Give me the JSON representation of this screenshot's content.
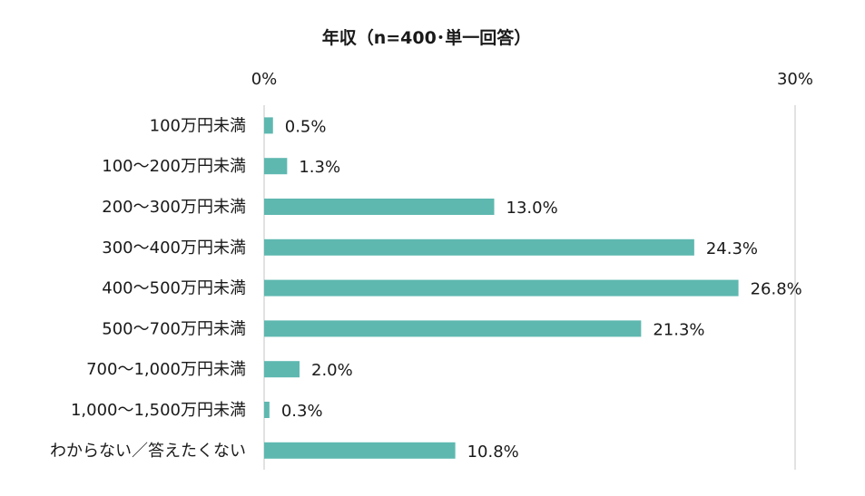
{
  "chart_data": {
    "type": "bar",
    "orientation": "horizontal",
    "title": "年収（n=400･単一回答）",
    "xlim": [
      0,
      30
    ],
    "x_tick_labels": [
      "0%",
      "30%"
    ],
    "categories": [
      "100万円未満",
      "100～200万円未満",
      "200～300万円未満",
      "300～400万円未満",
      "400～500万円未満",
      "500～700万円未満",
      "700～1,000万円未満",
      "1,000～1,500万円未満",
      "わからない／答えたくない"
    ],
    "values": [
      0.5,
      1.3,
      13.0,
      24.3,
      26.8,
      21.3,
      2.0,
      0.3,
      10.8
    ],
    "value_labels": [
      "0.5%",
      "1.3%",
      "13.0%",
      "24.3%",
      "26.8%",
      "21.3%",
      "2.0%",
      "0.3%",
      "10.8%"
    ],
    "bar_color": "#5eb8b0",
    "grid": true,
    "legend": "none"
  }
}
